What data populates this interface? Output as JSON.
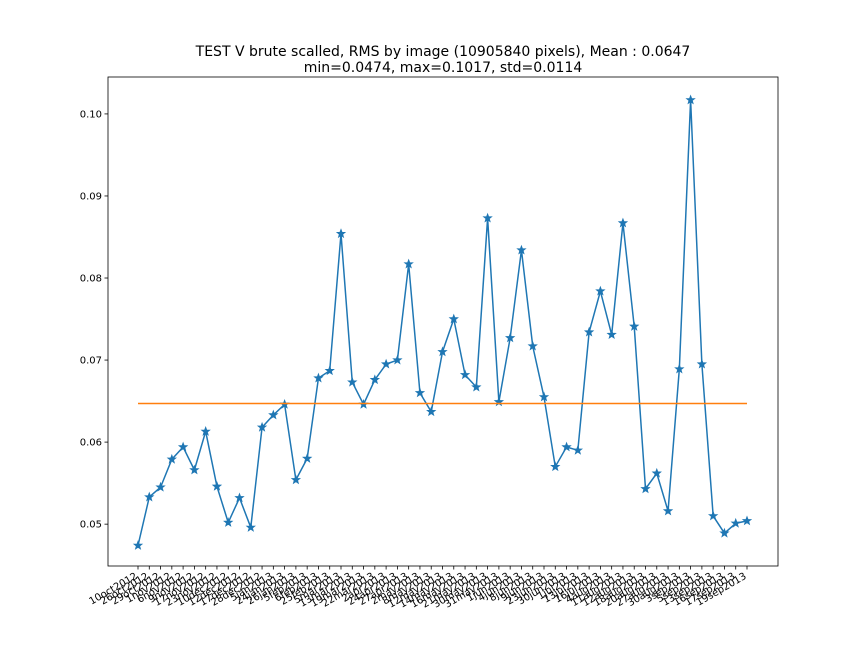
{
  "chart_data": {
    "type": "line",
    "title": "TEST V brute scalled, RMS by image (10905840 pixels), Mean : 0.0647",
    "subtitle": "min=0.0474, max=0.1017, std=0.0114",
    "categories": [
      "10oct2012",
      "26oct2012",
      "29oct2012",
      "1nov2012",
      "6nov2012",
      "9nov2012",
      "17nov2012",
      "23nov2012",
      "10dec2012",
      "12dec2012",
      "17dec2012",
      "28dec2012",
      "5jan2013",
      "24jan2013",
      "26jan2013",
      "5feb2013",
      "6feb2013",
      "25feb2013",
      "5mar2013",
      "13mar2013",
      "19mar2013",
      "22mar2013",
      "2apr2013",
      "24apr2013",
      "27apr2013",
      "2may2013",
      "8may2013",
      "12may2013",
      "14may2013",
      "16may2013",
      "21may2013",
      "30may2013",
      "31may2013",
      "1jun2013",
      "4jun2013",
      "8jun2013",
      "9jun2013",
      "23jun2013",
      "30jun2013",
      "1jul2013",
      "13jul2013",
      "16jul2013",
      "4aug2013",
      "11aug2013",
      "12aug2013",
      "18aug2013",
      "20aug2013",
      "27aug2013",
      "30aug2013",
      "3sep2013",
      "5sep2013",
      "13sep2013",
      "16sep2013",
      "17sep2013",
      "19sep2013"
    ],
    "series": [
      {
        "color": "#1f77b4",
        "values": [
          0.0474,
          0.0533,
          0.0545,
          0.0579,
          0.0594,
          0.0566,
          0.0613,
          0.0546,
          0.0502,
          0.0532,
          0.0496,
          0.0618,
          0.0633,
          0.0646,
          0.0554,
          0.058,
          0.0678,
          0.0687,
          0.0854,
          0.0673,
          0.0646,
          0.0676,
          0.0695,
          0.07,
          0.0817,
          0.066,
          0.0637,
          0.071,
          0.075,
          0.0682,
          0.0667,
          0.0873,
          0.0649,
          0.0727,
          0.0834,
          0.0717,
          0.0655,
          0.057,
          0.0594,
          0.059,
          0.0734,
          0.0784,
          0.0731,
          0.0867,
          0.0741,
          0.0543,
          0.0562,
          0.0516,
          0.0689,
          0.1017,
          0.0695,
          0.051,
          0.0489,
          0.0501,
          0.0504
        ]
      }
    ],
    "mean_line": {
      "value": 0.0647,
      "color": "#ff7f0e"
    },
    "ylim": [
      0.0449,
      0.1045
    ],
    "yticks": [
      0.05,
      0.06,
      0.07,
      0.08,
      0.09,
      {
        "value": 0.1,
        "label": "0.10"
      }
    ],
    "grid": false
  }
}
